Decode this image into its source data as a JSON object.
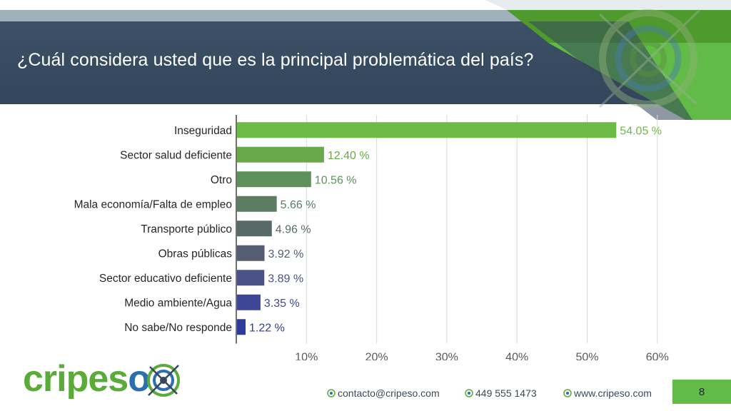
{
  "header": {
    "title": "¿Cuál considera usted que es la principal problemática del país?"
  },
  "chart_data": {
    "type": "bar",
    "orientation": "horizontal",
    "title": "",
    "xlabel": "",
    "ylabel": "",
    "xlim": [
      0,
      60
    ],
    "xticks": [
      "10%",
      "20%",
      "30%",
      "40%",
      "50%",
      "60%"
    ],
    "grid": true,
    "categories": [
      "Inseguridad",
      "Sector salud deficiente",
      "Otro",
      "Mala economía/Falta de empleo",
      "Transporte público",
      "Obras públicas",
      "Sector educativo deficiente",
      "Medio ambiente/Agua",
      "No sabe/No responde"
    ],
    "values": [
      54.05,
      12.4,
      10.56,
      5.66,
      4.96,
      3.92,
      3.89,
      3.35,
      1.22
    ],
    "value_labels": [
      "54.05 %",
      "12.40 %",
      "10.56 %",
      "5.66 %",
      "4.96 %",
      "3.92 %",
      "3.89 %",
      "3.35 %",
      "1.22 %"
    ],
    "colors": [
      "#6cbb45",
      "#6aa84c",
      "#5e9159",
      "#5b7d62",
      "#586a68",
      "#545d72",
      "#4b5287",
      "#3e4795",
      "#2e3b9a"
    ],
    "label_colors": [
      "#6cbb45",
      "#6aa84c",
      "#5e9159",
      "#5b7d62",
      "#586a68",
      "#545d72",
      "#4b5287",
      "#3e4795",
      "#2e3b9a"
    ]
  },
  "brand": {
    "logo_part1": "cripes",
    "logo_part2": "o"
  },
  "footer": {
    "email": "contacto@cripeso.com",
    "phone": "449 555 1473",
    "website": "www.cripeso.com",
    "page_number": "8"
  },
  "colors": {
    "header_band": "#33465b",
    "accent_green": "#62bb46",
    "brand_blue": "#2a6fb0"
  }
}
